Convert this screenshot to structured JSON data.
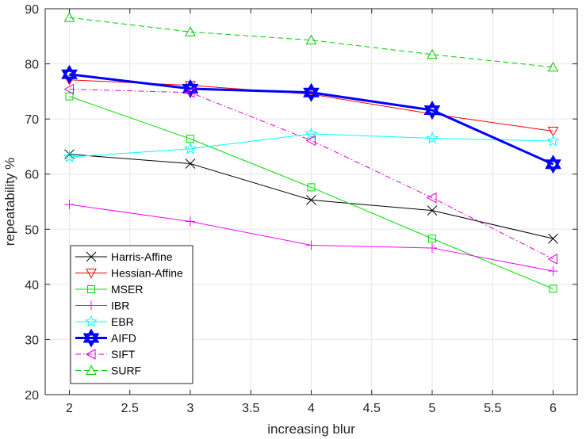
{
  "chart_data": {
    "type": "line",
    "title": "",
    "xlabel": "increasing blur",
    "ylabel": "repeatability %",
    "xlim": [
      1.8,
      6.2
    ],
    "ylim": [
      20,
      90
    ],
    "xticks": [
      2,
      2.5,
      3,
      3.5,
      4,
      4.5,
      5,
      5.5,
      6
    ],
    "xtick_labels": [
      "2",
      "2.5",
      "3",
      "3.5",
      "4",
      "4.5",
      "5",
      "5.5",
      "6"
    ],
    "yticks": [
      20,
      30,
      40,
      50,
      60,
      70,
      80,
      90
    ],
    "ytick_labels": [
      "20",
      "30",
      "40",
      "50",
      "60",
      "70",
      "80",
      "90"
    ],
    "grid": true,
    "legend_position": "bottom-left",
    "x": [
      2,
      3,
      4,
      5,
      6
    ],
    "series": [
      {
        "name": "Harris-Affine",
        "values": [
          63.6,
          61.9,
          55.3,
          53.4,
          48.3
        ],
        "color": "#000000",
        "marker": "x",
        "dash": "solid",
        "width": 1
      },
      {
        "name": "Hessian-Affine",
        "values": [
          77.1,
          76.1,
          74.5,
          70.9,
          67.8
        ],
        "color": "#ff0000",
        "marker": "triangle-down",
        "dash": "solid",
        "width": 1
      },
      {
        "name": "MSER",
        "values": [
          74.1,
          66.4,
          57.6,
          48.3,
          39.2
        ],
        "color": "#00dd00",
        "marker": "square",
        "dash": "solid",
        "width": 1
      },
      {
        "name": "IBR",
        "values": [
          54.5,
          51.4,
          47.1,
          46.6,
          42.4
        ],
        "color": "#ff00ff",
        "marker": "plus",
        "dash": "solid",
        "width": 1
      },
      {
        "name": "EBR",
        "values": [
          63.1,
          64.6,
          67.3,
          66.5,
          66.0
        ],
        "color": "#00ffff",
        "marker": "star",
        "dash": "solid",
        "width": 1
      },
      {
        "name": "AIFD",
        "values": [
          78.1,
          75.5,
          74.8,
          71.6,
          61.8
        ],
        "color": "#0000ff",
        "marker": "hexagram",
        "dash": "solid",
        "width": 3
      },
      {
        "name": "SIFT",
        "values": [
          75.4,
          74.8,
          66.1,
          55.7,
          44.6
        ],
        "color": "#dd00dd",
        "marker": "triangle-left",
        "dash": "dashdot",
        "width": 1
      },
      {
        "name": "SURF",
        "values": [
          88.4,
          85.8,
          84.3,
          81.7,
          79.4
        ],
        "color": "#00cc00",
        "marker": "triangle-up",
        "dash": "dashed",
        "width": 1
      }
    ]
  }
}
